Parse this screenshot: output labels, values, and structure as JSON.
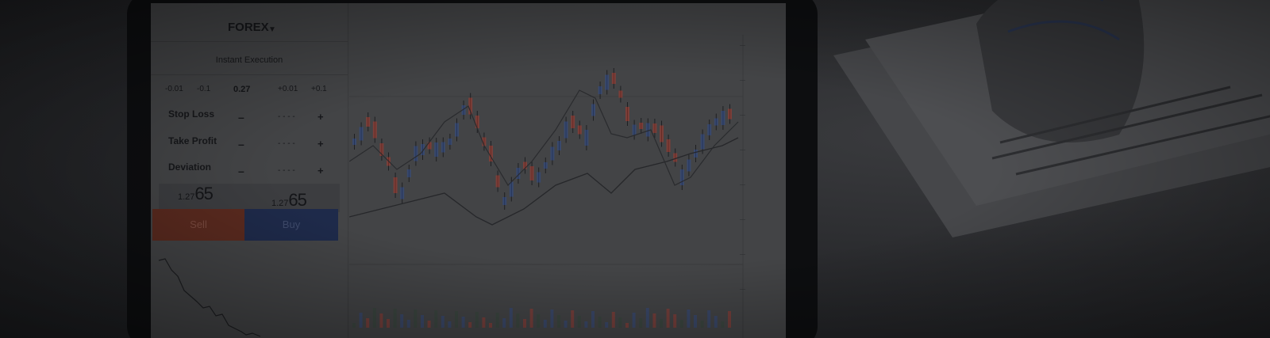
{
  "trade_panel": {
    "symbol": "FOREX",
    "dropdown_icon": "chevron-down-icon",
    "execution_mode": "Instant Execution",
    "volume_steps": [
      "-0.01",
      "-0.1",
      "0.27",
      "+0.01",
      "+0.1"
    ],
    "rows": [
      {
        "label": "Stop Loss"
      },
      {
        "label": "Take Profit"
      },
      {
        "label": "Deviation"
      }
    ],
    "bid": {
      "small": "1.27",
      "big": "65"
    },
    "ask": {
      "small": "1.27",
      "big": "65"
    },
    "sell_label": "Sell",
    "buy_label": "Buy"
  },
  "colors": {
    "sell": "#c0392b",
    "buy": "#2e4f9e",
    "bull_candle": "#2e4f9e",
    "bear_candle": "#c0392b"
  }
}
